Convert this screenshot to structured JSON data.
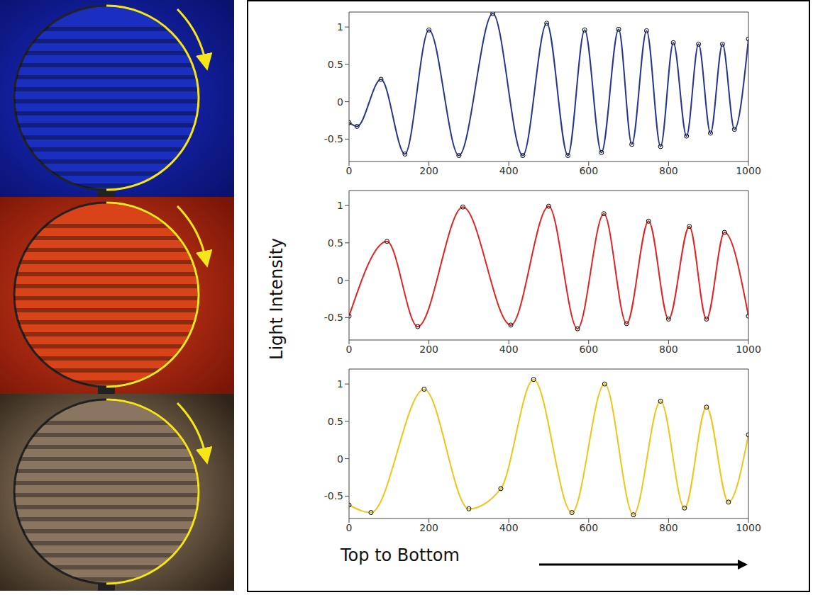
{
  "ylabel": "Light Intensity",
  "xlabel": "Top to Bottom",
  "chart_data": [
    {
      "type": "line",
      "color": "#27358f",
      "marker": "circle",
      "x": [
        0,
        20,
        80,
        140,
        200,
        275,
        360,
        435,
        495,
        548,
        590,
        632,
        675,
        708,
        745,
        780,
        812,
        845,
        875,
        905,
        935,
        965,
        1000
      ],
      "values": [
        -0.28,
        -0.33,
        0.3,
        -0.7,
        0.96,
        -0.72,
        1.18,
        -0.72,
        1.05,
        -0.72,
        0.96,
        -0.68,
        0.97,
        -0.57,
        0.95,
        -0.6,
        0.79,
        -0.46,
        0.77,
        -0.42,
        0.77,
        -0.37,
        0.84
      ],
      "xlim": [
        0,
        1000
      ],
      "xticks": [
        0,
        200,
        400,
        600,
        800,
        1000
      ],
      "ylim": [
        -0.8,
        1.2
      ],
      "yticks": [
        -0.5,
        0,
        0.5,
        1
      ]
    },
    {
      "type": "line",
      "color": "#e02424",
      "marker": "circle",
      "x": [
        0,
        95,
        172,
        285,
        405,
        500,
        572,
        638,
        695,
        750,
        800,
        852,
        895,
        940,
        1000
      ],
      "values": [
        -0.48,
        0.52,
        -0.62,
        0.98,
        -0.6,
        0.99,
        -0.65,
        0.89,
        -0.58,
        0.79,
        -0.52,
        0.72,
        -0.52,
        0.64,
        -0.48
      ],
      "xlim": [
        0,
        1000
      ],
      "xticks": [
        0,
        200,
        400,
        600,
        800,
        1000
      ],
      "ylim": [
        -0.8,
        1.2
      ],
      "yticks": [
        -0.5,
        0,
        0.5,
        1
      ]
    },
    {
      "type": "line",
      "color": "#f0c419",
      "marker": "circle",
      "x": [
        0,
        55,
        188,
        300,
        380,
        462,
        558,
        640,
        712,
        780,
        840,
        895,
        950,
        1000
      ],
      "values": [
        -0.62,
        -0.72,
        0.93,
        -0.67,
        -0.4,
        1.06,
        -0.72,
        1.0,
        -0.75,
        0.77,
        -0.66,
        0.69,
        -0.58,
        0.32
      ],
      "xlim": [
        0,
        1000
      ],
      "xticks": [
        0,
        200,
        400,
        600,
        800,
        1000
      ],
      "ylim": [
        -0.8,
        1.2
      ],
      "yticks": [
        -0.5,
        0,
        0.5,
        1
      ]
    }
  ]
}
